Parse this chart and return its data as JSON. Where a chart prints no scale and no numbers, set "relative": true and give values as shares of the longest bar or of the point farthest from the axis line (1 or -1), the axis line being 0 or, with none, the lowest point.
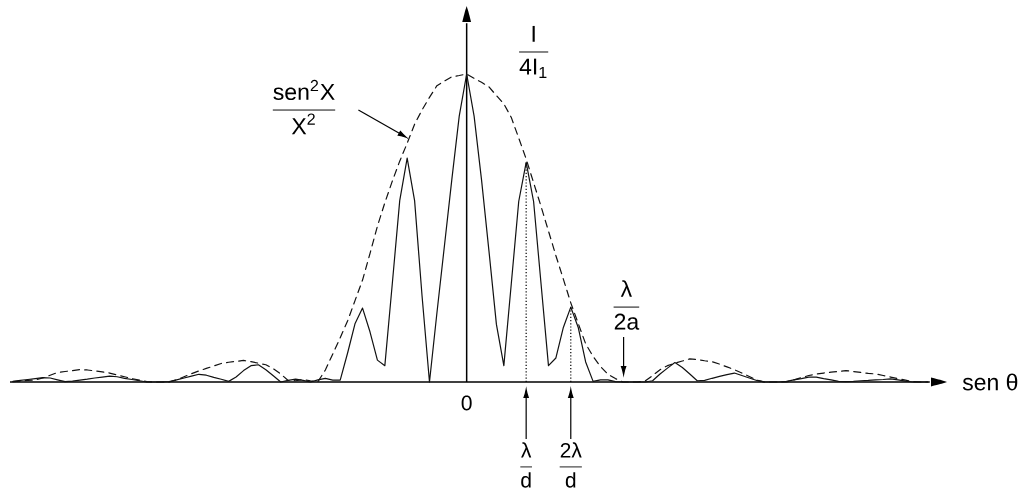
{
  "chart_data": {
    "type": "line",
    "relative": true,
    "xlabel": "sen θ",
    "ylabel": "\\frac{\\text{I}}{\\text{4I}_{\\text{1}}}",
    "categories": [
      null,
      null,
      null,
      null,
      null,
      null,
      null,
      null,
      null,
      null,
      null,
      null,
      null,
      null,
      null,
      null,
      null,
      null,
      null,
      null,
      null,
      null,
      null,
      null,
      null,
      null,
      null,
      null,
      null,
      null,
      null,
      null,
      null,
      null,
      null,
      null,
      null,
      null,
      null,
      null,
      null,
      null,
      null,
      null,
      null,
      null,
      null,
      null,
      null,
      null,
      null,
      null,
      null,
      null,
      null,
      null,
      null,
      null,
      null,
      null,
      null,
      "0",
      null,
      null,
      null,
      null,
      null,
      null,
      null,
      "\\frac{\\text{λ}}{\\text{d}}",
      null,
      null,
      null,
      null,
      null,
      "\\frac{\\text{2λ}}{\\text{d}}",
      null,
      null,
      null,
      null,
      null,
      null,
      null,
      null,
      null,
      null,
      null,
      null,
      null,
      null,
      null,
      null,
      null,
      null,
      null,
      null,
      null,
      null,
      null,
      null,
      null,
      null,
      null,
      null,
      null,
      null,
      null,
      null,
      null,
      null,
      null,
      null,
      null,
      null,
      null,
      null,
      null,
      null,
      null,
      null,
      null,
      null,
      null,
      null
    ],
    "annotations": [
      "\\frac{\\text{sen}^{\\text{2}}\\text{X}}{\\text{X}^{\\text{2}}}",
      "\\frac{\\text{λ}}{\\text{2a}}"
    ],
    "series": [
      {
        "color": "#111111",
        "line_style": "solid",
        "values": [
          0.002,
          0.005,
          0.008,
          0.011,
          0.014,
          0.013,
          0.007,
          0.001,
          0.003,
          0.006,
          0.009,
          0.013,
          0.016,
          0.019,
          0.017,
          0.012,
          0.008,
          0.004,
          0,
          0,
          0,
          0.001,
          0.007,
          0.013,
          0.019,
          0.025,
          0.022,
          0.015,
          0.009,
          0.002,
          0.016,
          0.037,
          0.053,
          0.056,
          0.04,
          0.02,
          0,
          0.005,
          0.009,
          0.005,
          0,
          0.007,
          0.012,
          0.006,
          0.006,
          0.095,
          0.19,
          0.24,
          0.163,
          0.071,
          0.053,
          0.319,
          0.589,
          0.727,
          0.589,
          0.28,
          0,
          0.224,
          0.44,
          0.656,
          0.863,
          1,
          0.863,
          0.656,
          0.425,
          0.187,
          0.053,
          0.319,
          0.586,
          0.713,
          0.586,
          0.319,
          0.053,
          0.078,
          0.177,
          0.243,
          0.177,
          0.065,
          0.002,
          0.007,
          0.007,
          0.001,
          0,
          0,
          0,
          0,
          0.004,
          0.026,
          0.045,
          0.063,
          0.047,
          0.026,
          0.004,
          0.005,
          0.012,
          0.018,
          0.024,
          0.029,
          0.021,
          0.013,
          0.005,
          0,
          0,
          0,
          0.002,
          0.007,
          0.011,
          0.016,
          0.016,
          0.011,
          0.007,
          0.002,
          0.001,
          0.002,
          0.004,
          0.005,
          0.007,
          0.008,
          0.01,
          0.007,
          0.003,
          0,
          0,
          0
        ]
      },
      {
        "color": "#111111",
        "line_style": "dashed",
        "values": [
          0.001,
          0.003,
          0.005,
          0.007,
          0.013,
          0.022,
          0.031,
          0.034,
          0.037,
          0.04,
          0.039,
          0.036,
          0.033,
          0.029,
          0.023,
          0.017,
          0.011,
          0.006,
          0.001,
          0,
          0,
          0,
          0.007,
          0.017,
          0.027,
          0.036,
          0.044,
          0.052,
          0.06,
          0.064,
          0.067,
          0.07,
          0.066,
          0.061,
          0.056,
          0.043,
          0.026,
          0.005,
          0.004,
          0.008,
          0.004,
          0.001,
          0.039,
          0.091,
          0.144,
          0.199,
          0.265,
          0.331,
          0.417,
          0.506,
          0.582,
          0.652,
          0.717,
          0.775,
          0.837,
          0.883,
          0.924,
          0.962,
          0.977,
          0.991,
          0.995,
          1,
          0.986,
          0.973,
          0.958,
          0.93,
          0.903,
          0.859,
          0.792,
          0.724,
          0.647,
          0.57,
          0.49,
          0.41,
          0.334,
          0.257,
          0.19,
          0.124,
          0.083,
          0.05,
          0.025,
          0.011,
          0,
          0,
          0,
          0.003,
          0.021,
          0.04,
          0.053,
          0.061,
          0.068,
          0.075,
          0.073,
          0.069,
          0.066,
          0.058,
          0.049,
          0.04,
          0.029,
          0.018,
          0.006,
          0,
          0,
          0,
          0,
          0.007,
          0.014,
          0.021,
          0.026,
          0.029,
          0.032,
          0.034,
          0.037,
          0.034,
          0.031,
          0.028,
          0.026,
          0.021,
          0.016,
          0.011,
          0.006,
          0.001,
          0,
          0
        ]
      }
    ]
  }
}
